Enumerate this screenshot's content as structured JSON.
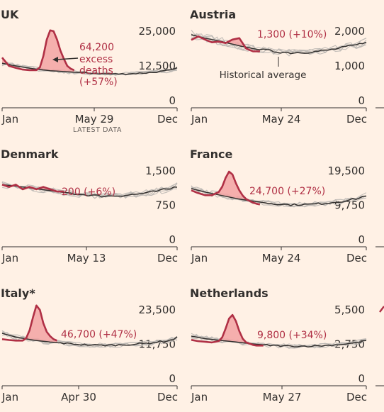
{
  "chart_data": [
    {
      "type": "line",
      "title": "UK",
      "ylim": [
        0,
        25000
      ],
      "y_ticks": [
        "25,000",
        "12,500",
        "0"
      ],
      "x_ticks": [
        "Jan",
        "May 29",
        "Dec"
      ],
      "latest_label": "LATEST DATA",
      "annotation": [
        "64,200",
        "excess",
        "deaths",
        "(+57%)"
      ],
      "historical_label": "",
      "weeks_current": [
        1,
        3,
        5,
        7,
        9,
        11,
        12,
        13,
        14,
        15,
        16,
        17,
        18,
        19,
        20,
        21,
        22
      ],
      "current": [
        15500,
        12500,
        11800,
        11200,
        11000,
        11000,
        12000,
        16000,
        22000,
        25300,
        25000,
        22000,
        18000,
        15000,
        12500,
        11500,
        11000
      ],
      "weeks_average": [
        1,
        5,
        10,
        15,
        20,
        25,
        30,
        35,
        40,
        45,
        50,
        52
      ],
      "average": [
        13500,
        12500,
        11500,
        10800,
        10400,
        10000,
        9700,
        9600,
        9800,
        10200,
        10900,
        11600
      ]
    },
    {
      "type": "line",
      "title": "Austria",
      "ylim": [
        0,
        2000
      ],
      "y_ticks": [
        "2,000",
        "1,000",
        "0"
      ],
      "x_ticks": [
        "Jan",
        "May 24",
        "Dec"
      ],
      "annotation": [
        "1,300 (+10%)"
      ],
      "historical_label": "Historical average",
      "weeks_current": [
        1,
        3,
        5,
        7,
        9,
        11,
        13,
        15,
        17,
        19,
        21
      ],
      "current": [
        1750,
        1850,
        1760,
        1680,
        1700,
        1660,
        1760,
        1800,
        1500,
        1420,
        1420
      ],
      "weeks_average": [
        1,
        5,
        10,
        15,
        20,
        25,
        30,
        35,
        40,
        45,
        50,
        52
      ],
      "average": [
        1900,
        1800,
        1700,
        1580,
        1480,
        1420,
        1380,
        1400,
        1440,
        1520,
        1620,
        1720
      ]
    },
    {
      "type": "line",
      "title": "Denmark",
      "ylim": [
        0,
        1500
      ],
      "y_ticks": [
        "1,500",
        "750",
        "0"
      ],
      "x_ticks": [
        "Jan",
        "May 13",
        "Dec"
      ],
      "annotation": [
        "200 (+6%)"
      ],
      "historical_label": "",
      "weeks_current": [
        1,
        3,
        5,
        7,
        9,
        11,
        13,
        15,
        17,
        19
      ],
      "current": [
        1200,
        1150,
        1200,
        1100,
        1150,
        1100,
        1150,
        1100,
        1050,
        1050
      ],
      "weeks_average": [
        1,
        5,
        10,
        15,
        20,
        25,
        30,
        35,
        40,
        45,
        50,
        52
      ],
      "average": [
        1200,
        1170,
        1120,
        1070,
        1020,
        980,
        950,
        960,
        990,
        1040,
        1110,
        1170
      ]
    },
    {
      "type": "line",
      "title": "France",
      "ylim": [
        0,
        19500
      ],
      "y_ticks": [
        "19,500",
        "9,750",
        "0"
      ],
      "x_ticks": [
        "Jan",
        "May 24",
        "Dec"
      ],
      "annotation": [
        "24,700 (+27%)"
      ],
      "historical_label": "",
      "weeks_current": [
        1,
        3,
        5,
        7,
        9,
        10,
        11,
        12,
        13,
        14,
        15,
        16,
        17,
        18,
        19,
        20,
        21
      ],
      "current": [
        14000,
        13200,
        12600,
        12600,
        13500,
        15000,
        17500,
        19300,
        18500,
        16000,
        14000,
        12500,
        11500,
        11000,
        10500,
        10200,
        10000
      ],
      "weeks_average": [
        1,
        5,
        10,
        15,
        20,
        25,
        30,
        35,
        40,
        45,
        50,
        52
      ],
      "average": [
        14500,
        13500,
        12500,
        11500,
        10800,
        10200,
        9900,
        10000,
        10300,
        10900,
        11800,
        12600
      ]
    },
    {
      "type": "line",
      "title": "Italy*",
      "ylim": [
        0,
        23500
      ],
      "y_ticks": [
        "23,500",
        "11,750",
        "0"
      ],
      "x_ticks": [
        "Jan",
        "Apr 30",
        "Dec"
      ],
      "annotation": [
        "46,700 (+47%)"
      ],
      "historical_label": "",
      "weeks_current": [
        1,
        3,
        5,
        7,
        8,
        9,
        10,
        11,
        12,
        13,
        14,
        15,
        16,
        17
      ],
      "current": [
        13500,
        13200,
        13000,
        13000,
        13800,
        16500,
        21000,
        25000,
        23500,
        19000,
        16000,
        14500,
        13500,
        13000
      ],
      "weeks_average": [
        1,
        5,
        10,
        15,
        20,
        25,
        30,
        35,
        40,
        45,
        50,
        52
      ],
      "average": [
        15500,
        14200,
        13200,
        12500,
        12000,
        11600,
        11400,
        11500,
        11800,
        12300,
        13100,
        14000
      ]
    },
    {
      "type": "line",
      "title": "Netherlands",
      "ylim": [
        0,
        5500
      ],
      "y_ticks": [
        "5,500",
        "2,750",
        "0"
      ],
      "x_ticks": [
        "Jan",
        "May 27",
        "Dec"
      ],
      "annotation": [
        "9,800 (+34%)"
      ],
      "historical_label": "",
      "weeks_current": [
        1,
        3,
        5,
        7,
        9,
        10,
        11,
        12,
        13,
        14,
        15,
        16,
        17,
        18,
        19,
        20,
        21,
        22
      ],
      "current": [
        3100,
        3000,
        2950,
        2900,
        3000,
        3300,
        4000,
        4800,
        5100,
        4600,
        3800,
        3200,
        2900,
        2800,
        2700,
        2650,
        2650,
        2650
      ],
      "weeks_average": [
        1,
        5,
        10,
        15,
        20,
        25,
        30,
        35,
        40,
        45,
        50,
        52
      ],
      "average": [
        3400,
        3200,
        3050,
        2900,
        2750,
        2650,
        2600,
        2600,
        2650,
        2750,
        2900,
        3050
      ]
    }
  ],
  "colors": {
    "current": "#b03045",
    "excess_fill": "#f3a3a3",
    "average": "#33302e",
    "history": "#bdb8b4",
    "axis": "#33302e",
    "background": "#fff1e5"
  }
}
